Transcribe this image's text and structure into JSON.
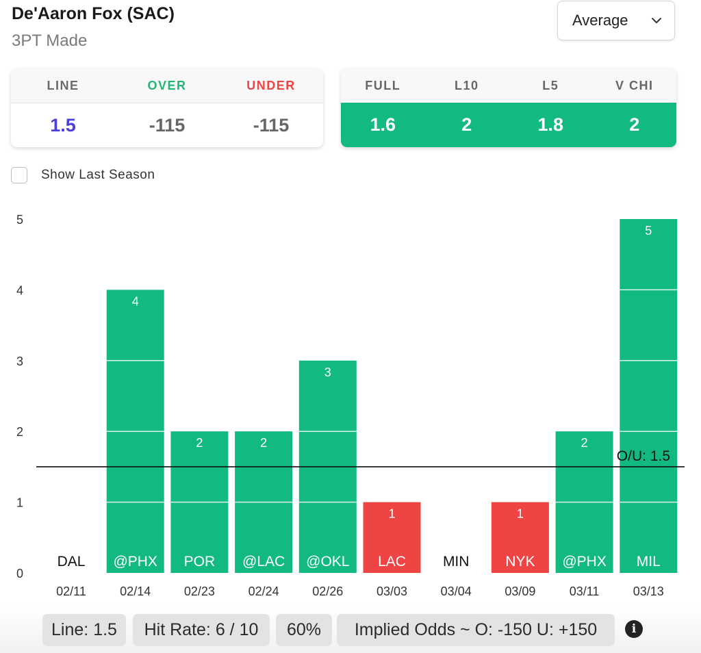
{
  "header": {
    "player": "De'Aaron Fox (SAC)",
    "stat": "3PT Made",
    "dropdown": {
      "selected": "Average"
    }
  },
  "line_card": {
    "headers": [
      {
        "label": "LINE",
        "color": "#6b6b6b"
      },
      {
        "label": "OVER",
        "color": "#22b573"
      },
      {
        "label": "UNDER",
        "color": "#ef4444"
      }
    ],
    "values": [
      {
        "value": "1.5",
        "color": "#4a3fd8"
      },
      {
        "value": "-115",
        "color": "#666666"
      },
      {
        "value": "-115",
        "color": "#666666"
      }
    ]
  },
  "avg_card": {
    "headers": [
      "FULL",
      "L10",
      "L5",
      "V CHI"
    ],
    "values": [
      "1.6",
      "2",
      "1.8",
      "2"
    ]
  },
  "toggle": {
    "label": "Show Last Season",
    "checked": false
  },
  "chart_data": {
    "type": "bar",
    "title": "",
    "xlabel": "",
    "ylabel": "",
    "ylim": [
      0,
      5
    ],
    "yticks": [
      0,
      1,
      2,
      3,
      4,
      5
    ],
    "categories": [
      "02/11",
      "02/14",
      "02/23",
      "02/24",
      "02/26",
      "03/03",
      "03/04",
      "03/09",
      "03/11",
      "03/13"
    ],
    "opponents": [
      "DAL",
      "@PHX",
      "POR",
      "@LAC",
      "@OKL",
      "LAC",
      "MIN",
      "NYK",
      "@PHX",
      "MIL"
    ],
    "values": [
      0,
      4,
      2,
      2,
      3,
      1,
      0,
      1,
      2,
      5
    ],
    "line": {
      "value": 1.5,
      "label": "O/U: 1.5"
    },
    "colors": {
      "over": "#12b981",
      "under": "#ef4444"
    }
  },
  "footer": {
    "line": "Line: 1.5",
    "hit_rate": "Hit Rate: 6 / 10",
    "percent": "60%",
    "implied_odds": "Implied Odds ~ O: -150 U: +150",
    "info_glyph": "i"
  }
}
